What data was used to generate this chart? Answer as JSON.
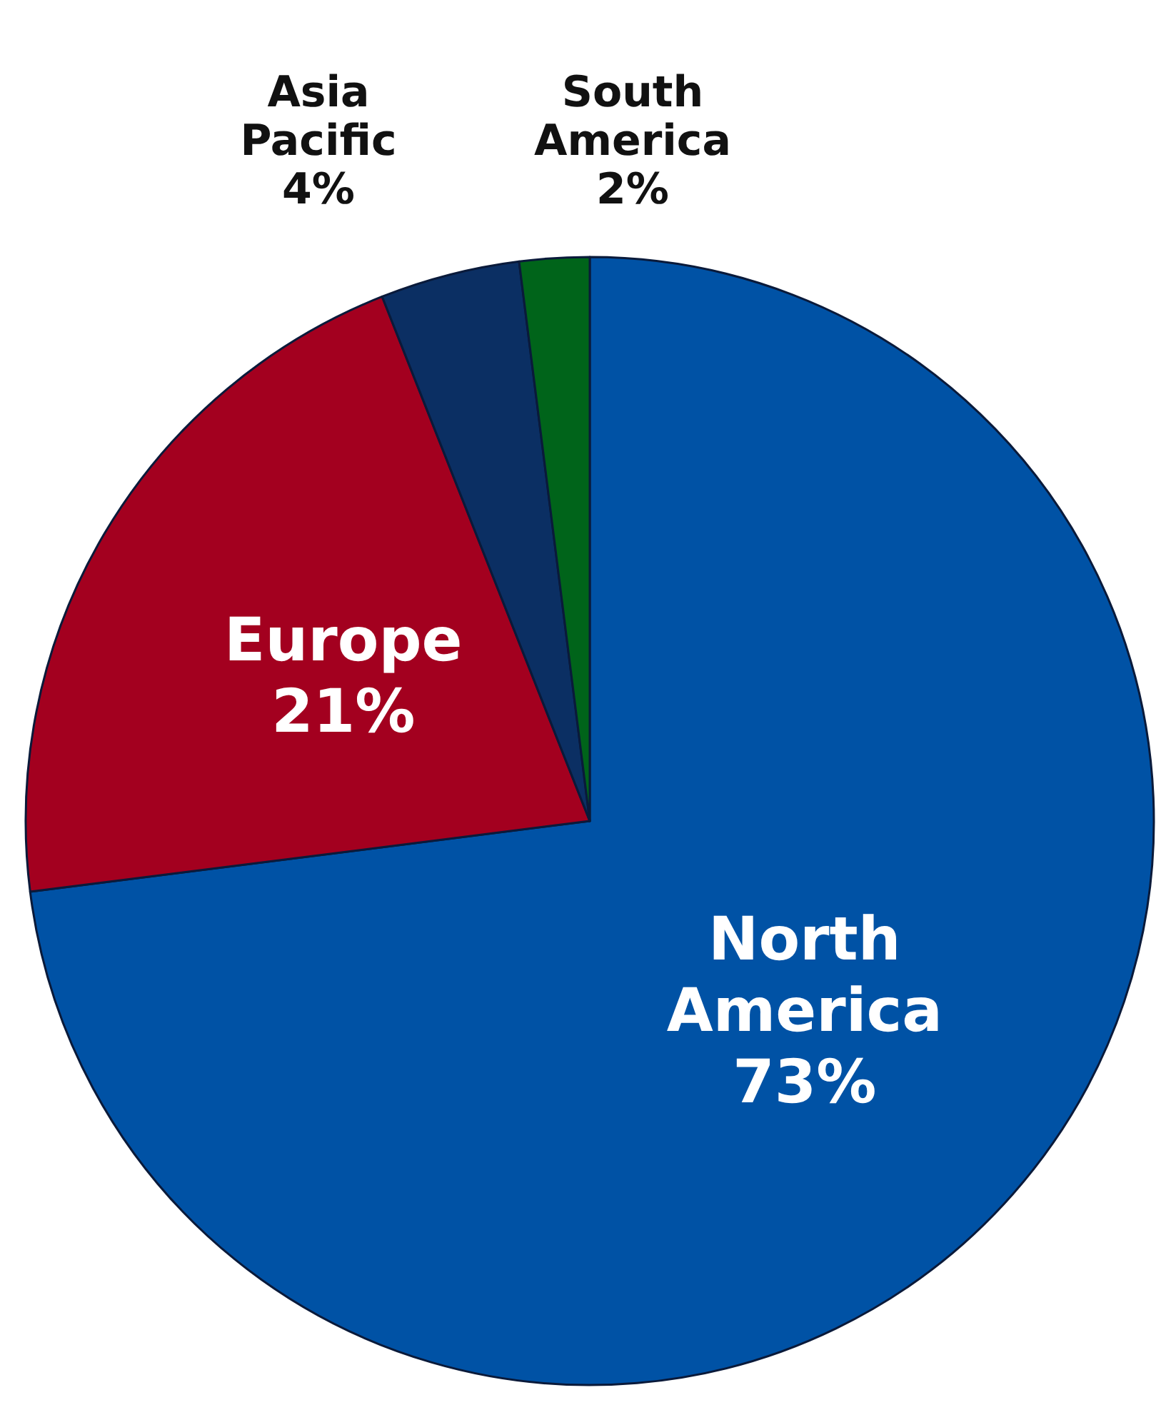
{
  "chart_data": {
    "type": "pie",
    "categories": [
      "North America",
      "Europe",
      "Asia Pacific",
      "South America"
    ],
    "values": [
      73,
      21,
      4,
      2
    ],
    "colors": [
      "#0052a5",
      "#a3001f",
      "#0b2f63",
      "#00641a"
    ],
    "value_labels": [
      "73%",
      "21%",
      "4%",
      "2%"
    ]
  }
}
